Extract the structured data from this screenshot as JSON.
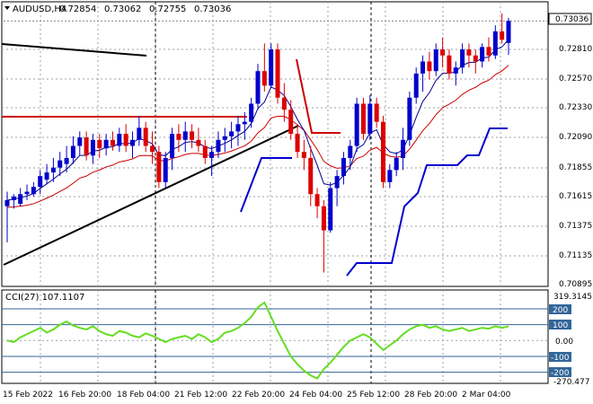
{
  "header": {
    "symbol": "AUDUSD,H4",
    "open": "0.72854",
    "high": "0.73062",
    "low": "0.72755",
    "close": "0.73036"
  },
  "current_price": "0.73036",
  "price_axis_labels": [
    "0.73036",
    "0.72810",
    "0.72570",
    "0.72330",
    "0.72090",
    "0.71855",
    "0.71615",
    "0.71375",
    "0.71135",
    "0.70895"
  ],
  "cci": {
    "label": "CCI(27) 107.1107",
    "axis_max": "319.3145",
    "axis_min": "-270.477",
    "levels": [
      "200",
      "100",
      "0.00",
      "-100",
      "-200"
    ]
  },
  "time_labels": [
    "15 Feb 2022",
    "16 Feb 20:00",
    "18 Feb 04:00",
    "21 Feb 12:00",
    "22 Feb 20:00",
    "24 Feb 04:00",
    "25 Feb 12:00",
    "28 Feb 20:00",
    "2 Mar 04:00"
  ],
  "colors": {
    "bull": "#0000cc",
    "bear": "#dd0000",
    "ma_short": "#00008b",
    "ma_long": "#cc0000",
    "trendline": "#000000",
    "resistance": "#cc0000",
    "support": "#0000cc",
    "cci_line": "#66dd22",
    "cci_levels": "#336699",
    "grid": "#9aa0a6"
  },
  "chart_data": {
    "type": "candlestick",
    "price_range": [
      0.7085,
      0.7318
    ],
    "candles": [
      [
        0.715,
        0.7162,
        0.712,
        0.7155
      ],
      [
        0.7155,
        0.716,
        0.7148,
        0.7158
      ],
      [
        0.7152,
        0.7165,
        0.715,
        0.716
      ],
      [
        0.716,
        0.7168,
        0.7155,
        0.7162
      ],
      [
        0.716,
        0.717,
        0.7158,
        0.7166
      ],
      [
        0.7166,
        0.718,
        0.716,
        0.7175
      ],
      [
        0.7172,
        0.7185,
        0.7168,
        0.7178
      ],
      [
        0.7178,
        0.719,
        0.717,
        0.7182
      ],
      [
        0.7182,
        0.7195,
        0.7175,
        0.7188
      ],
      [
        0.7185,
        0.72,
        0.7178,
        0.719
      ],
      [
        0.719,
        0.7208,
        0.7185,
        0.72
      ],
      [
        0.72,
        0.7212,
        0.7192,
        0.7207
      ],
      [
        0.7207,
        0.7212,
        0.7188,
        0.7192
      ],
      [
        0.7192,
        0.721,
        0.7185,
        0.7205
      ],
      [
        0.7205,
        0.721,
        0.719,
        0.7198
      ],
      [
        0.7198,
        0.721,
        0.7192,
        0.7205
      ],
      [
        0.7205,
        0.7212,
        0.7196,
        0.72
      ],
      [
        0.72,
        0.7215,
        0.7195,
        0.721
      ],
      [
        0.721,
        0.7218,
        0.7195,
        0.72
      ],
      [
        0.72,
        0.7212,
        0.719,
        0.7205
      ],
      [
        0.7205,
        0.7225,
        0.72,
        0.7215
      ],
      [
        0.7215,
        0.722,
        0.7195,
        0.72
      ],
      [
        0.72,
        0.7212,
        0.7185,
        0.7195
      ],
      [
        0.7195,
        0.72,
        0.7165,
        0.717
      ],
      [
        0.717,
        0.7195,
        0.7165,
        0.719
      ],
      [
        0.719,
        0.7215,
        0.718,
        0.721
      ],
      [
        0.721,
        0.7218,
        0.7195,
        0.7205
      ],
      [
        0.7205,
        0.722,
        0.7195,
        0.7212
      ],
      [
        0.7212,
        0.7218,
        0.7198,
        0.7205
      ],
      [
        0.7205,
        0.7215,
        0.7195,
        0.72
      ],
      [
        0.72,
        0.7205,
        0.7185,
        0.719
      ],
      [
        0.719,
        0.72,
        0.7175,
        0.7195
      ],
      [
        0.7195,
        0.7212,
        0.719,
        0.7205
      ],
      [
        0.7205,
        0.7215,
        0.7195,
        0.7208
      ],
      [
        0.7208,
        0.722,
        0.7198,
        0.7212
      ],
      [
        0.7212,
        0.7225,
        0.72,
        0.7218
      ],
      [
        0.7218,
        0.7228,
        0.7205,
        0.722
      ],
      [
        0.722,
        0.724,
        0.7215,
        0.7235
      ],
      [
        0.7235,
        0.7268,
        0.723,
        0.7262
      ],
      [
        0.7262,
        0.7285,
        0.7245,
        0.725
      ],
      [
        0.725,
        0.7285,
        0.7248,
        0.728
      ],
      [
        0.728,
        0.7285,
        0.7235,
        0.724
      ],
      [
        0.724,
        0.7252,
        0.722,
        0.723
      ],
      [
        0.723,
        0.7238,
        0.7205,
        0.721
      ],
      [
        0.721,
        0.7218,
        0.719,
        0.7195
      ],
      [
        0.7195,
        0.7205,
        0.718,
        0.719
      ],
      [
        0.719,
        0.72,
        0.715,
        0.716
      ],
      [
        0.716,
        0.7165,
        0.714,
        0.715
      ],
      [
        0.715,
        0.7155,
        0.7095,
        0.713
      ],
      [
        0.713,
        0.717,
        0.7128,
        0.7165
      ],
      [
        0.7165,
        0.718,
        0.715,
        0.7175
      ],
      [
        0.7175,
        0.7195,
        0.7168,
        0.719
      ],
      [
        0.719,
        0.7205,
        0.718,
        0.72
      ],
      [
        0.72,
        0.724,
        0.7195,
        0.7235
      ],
      [
        0.7235,
        0.724,
        0.7205,
        0.721
      ],
      [
        0.721,
        0.7242,
        0.7205,
        0.7235
      ],
      [
        0.7235,
        0.724,
        0.7215,
        0.722
      ],
      [
        0.722,
        0.7225,
        0.7165,
        0.717
      ],
      [
        0.717,
        0.7185,
        0.7165,
        0.718
      ],
      [
        0.718,
        0.7195,
        0.7175,
        0.719
      ],
      [
        0.719,
        0.7215,
        0.718,
        0.7205
      ],
      [
        0.7205,
        0.7245,
        0.72,
        0.724
      ],
      [
        0.724,
        0.7265,
        0.7235,
        0.726
      ],
      [
        0.726,
        0.7275,
        0.7245,
        0.727
      ],
      [
        0.727,
        0.7278,
        0.7255,
        0.7262
      ],
      [
        0.7262,
        0.7285,
        0.7258,
        0.728
      ],
      [
        0.728,
        0.729,
        0.7265,
        0.7275
      ],
      [
        0.7275,
        0.728,
        0.7255,
        0.726
      ],
      [
        0.726,
        0.727,
        0.725,
        0.7265
      ],
      [
        0.7265,
        0.7285,
        0.726,
        0.728
      ],
      [
        0.728,
        0.7285,
        0.7265,
        0.7275
      ],
      [
        0.7275,
        0.728,
        0.726,
        0.727
      ],
      [
        0.727,
        0.7285,
        0.7265,
        0.7282
      ],
      [
        0.7282,
        0.729,
        0.727,
        0.7275
      ],
      [
        0.7275,
        0.73,
        0.7272,
        0.7295
      ],
      [
        0.7295,
        0.731,
        0.7285,
        0.7288
      ],
      [
        0.72854,
        0.73062,
        0.72755,
        0.73036
      ]
    ]
  }
}
